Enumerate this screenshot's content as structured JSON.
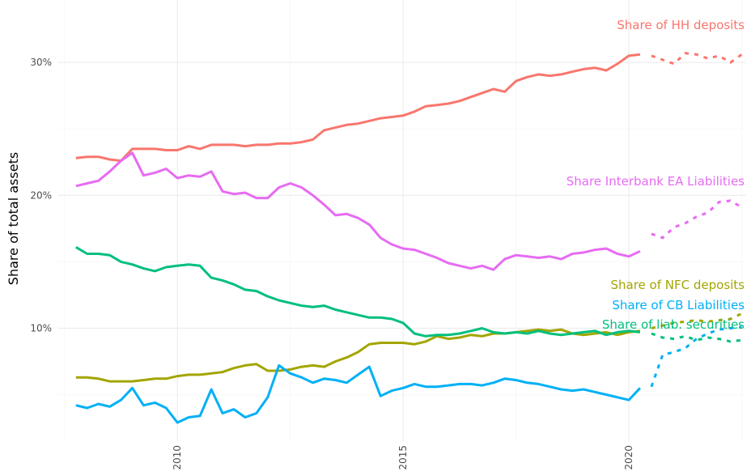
{
  "chart_data": {
    "type": "line",
    "y_label": "Share of total assets",
    "x": [
      2007.75,
      2008,
      2008.25,
      2008.5,
      2008.75,
      2009,
      2009.25,
      2009.5,
      2009.75,
      2010,
      2010.25,
      2010.5,
      2010.75,
      2011,
      2011.25,
      2011.5,
      2011.75,
      2012,
      2012.25,
      2012.5,
      2012.75,
      2013,
      2013.25,
      2013.5,
      2013.75,
      2014,
      2014.25,
      2014.5,
      2014.75,
      2015,
      2015.25,
      2015.5,
      2015.75,
      2016,
      2016.25,
      2016.5,
      2016.75,
      2017,
      2017.25,
      2017.5,
      2017.75,
      2018,
      2018.25,
      2018.5,
      2018.75,
      2019,
      2019.25,
      2019.5,
      2019.75,
      2020,
      2020.25,
      2020.5,
      2020.75,
      2021,
      2021.25,
      2021.5,
      2021.75,
      2022,
      2022.25,
      2022.5
    ],
    "xlim": [
      2007.36,
      2022.6
    ],
    "xticks": [
      2010,
      2015,
      2020
    ],
    "minor_xticks": [
      2007.5,
      2012.5,
      2017.5,
      2022.5
    ],
    "ylim": [
      1.5,
      34.7
    ],
    "yticks": [
      {
        "value": 10,
        "label": "10%"
      },
      {
        "value": 20,
        "label": "20%"
      },
      {
        "value": 30,
        "label": "30%"
      }
    ],
    "minor_yticks": [
      5,
      15,
      25
    ],
    "grid": true,
    "series": [
      {
        "name": "Share of HH deposits",
        "color": "#F8766D",
        "values": [
          22.8,
          22.9,
          22.9,
          22.7,
          22.6,
          23.5,
          23.5,
          23.5,
          23.4,
          23.4,
          23.7,
          23.5,
          23.8,
          23.8,
          23.8,
          23.7,
          23.8,
          23.8,
          23.9,
          23.9,
          24.0,
          24.2,
          24.9,
          25.1,
          25.3,
          25.4,
          25.6,
          25.8,
          25.9,
          26.0,
          26.3,
          26.7,
          26.8,
          26.9,
          27.1,
          27.4,
          27.7,
          28.0,
          27.8,
          28.6,
          28.9,
          29.1,
          29.0,
          29.1,
          29.3,
          29.5,
          29.6,
          29.4,
          29.9,
          30.5,
          30.6,
          null,
          null,
          null,
          null,
          null,
          null,
          null,
          null,
          null
        ],
        "projection": [
          null,
          null,
          null,
          null,
          null,
          null,
          null,
          null,
          null,
          null,
          null,
          null,
          null,
          null,
          null,
          null,
          null,
          null,
          null,
          null,
          null,
          null,
          null,
          null,
          null,
          null,
          null,
          null,
          null,
          null,
          null,
          null,
          null,
          null,
          null,
          null,
          null,
          null,
          null,
          null,
          null,
          null,
          null,
          null,
          null,
          null,
          null,
          null,
          null,
          null,
          null,
          30.5,
          30.2,
          29.9,
          30.7,
          30.6,
          30.3,
          30.5,
          30.0,
          30.6
        ]
      },
      {
        "name": "Share Interbank EA Liabilities",
        "color": "#E76BF3",
        "values": [
          20.7,
          20.9,
          21.1,
          21.8,
          22.6,
          23.2,
          21.5,
          21.7,
          22.0,
          21.3,
          21.5,
          21.4,
          21.8,
          20.3,
          20.1,
          20.2,
          19.8,
          19.8,
          20.6,
          20.9,
          20.6,
          20.0,
          19.3,
          18.5,
          18.6,
          18.3,
          17.8,
          16.8,
          16.3,
          16.0,
          15.9,
          15.6,
          15.3,
          14.9,
          14.7,
          14.5,
          14.7,
          14.4,
          15.2,
          15.5,
          15.4,
          15.3,
          15.4,
          15.2,
          15.6,
          15.7,
          15.9,
          16.0,
          15.6,
          15.4,
          15.8,
          null,
          null,
          null,
          null,
          null,
          null,
          null,
          null,
          null
        ],
        "projection": [
          null,
          null,
          null,
          null,
          null,
          null,
          null,
          null,
          null,
          null,
          null,
          null,
          null,
          null,
          null,
          null,
          null,
          null,
          null,
          null,
          null,
          null,
          null,
          null,
          null,
          null,
          null,
          null,
          null,
          null,
          null,
          null,
          null,
          null,
          null,
          null,
          null,
          null,
          null,
          null,
          null,
          null,
          null,
          null,
          null,
          null,
          null,
          null,
          null,
          null,
          null,
          17.1,
          16.8,
          17.6,
          17.9,
          18.4,
          18.7,
          19.5,
          19.6,
          19.1
        ]
      },
      {
        "name": "Share of NFC deposits",
        "color": "#A3A500",
        "values": [
          6.3,
          6.3,
          6.2,
          6.0,
          6.0,
          6.0,
          6.1,
          6.2,
          6.2,
          6.4,
          6.5,
          6.5,
          6.6,
          6.7,
          7.0,
          7.2,
          7.3,
          6.8,
          6.8,
          6.9,
          7.1,
          7.2,
          7.1,
          7.5,
          7.8,
          8.2,
          8.8,
          8.9,
          8.9,
          8.9,
          8.8,
          9.0,
          9.4,
          9.2,
          9.3,
          9.5,
          9.4,
          9.6,
          9.6,
          9.7,
          9.8,
          9.9,
          9.8,
          9.9,
          9.6,
          9.5,
          9.6,
          9.7,
          9.5,
          9.7,
          9.8,
          null,
          null,
          null,
          null,
          null,
          null,
          null,
          null,
          null
        ],
        "projection": [
          null,
          null,
          null,
          null,
          null,
          null,
          null,
          null,
          null,
          null,
          null,
          null,
          null,
          null,
          null,
          null,
          null,
          null,
          null,
          null,
          null,
          null,
          null,
          null,
          null,
          null,
          null,
          null,
          null,
          null,
          null,
          null,
          null,
          null,
          null,
          null,
          null,
          null,
          null,
          null,
          null,
          null,
          null,
          null,
          null,
          null,
          null,
          null,
          null,
          null,
          null,
          10.0,
          10.2,
          10.4,
          10.5,
          10.6,
          10.5,
          10.6,
          10.7,
          11.1
        ]
      },
      {
        "name": "Share of CB Liabilities",
        "color": "#00B0F6",
        "values": [
          4.2,
          4.0,
          4.3,
          4.1,
          4.6,
          5.5,
          4.2,
          4.4,
          4.0,
          2.9,
          3.3,
          3.4,
          5.4,
          3.6,
          3.9,
          3.3,
          3.6,
          4.8,
          7.2,
          6.6,
          6.3,
          5.9,
          6.2,
          6.1,
          5.9,
          6.5,
          7.1,
          4.9,
          5.3,
          5.5,
          5.8,
          5.6,
          5.6,
          5.7,
          5.8,
          5.8,
          5.7,
          5.9,
          6.2,
          6.1,
          5.9,
          5.8,
          5.6,
          5.4,
          5.3,
          5.4,
          5.2,
          5.0,
          4.8,
          4.6,
          5.5,
          null,
          null,
          null,
          null,
          null,
          null,
          null,
          null,
          null
        ],
        "projection": [
          null,
          null,
          null,
          null,
          null,
          null,
          null,
          null,
          null,
          null,
          null,
          null,
          null,
          null,
          null,
          null,
          null,
          null,
          null,
          null,
          null,
          null,
          null,
          null,
          null,
          null,
          null,
          null,
          null,
          null,
          null,
          null,
          null,
          null,
          null,
          null,
          null,
          null,
          null,
          null,
          null,
          null,
          null,
          null,
          null,
          null,
          null,
          null,
          null,
          null,
          null,
          5.6,
          8.0,
          8.2,
          8.5,
          9.2,
          9.6,
          9.9,
          10.0,
          10.1
        ]
      },
      {
        "name": "Share of liab. securities",
        "color": "#00BF7D",
        "values": [
          16.1,
          15.6,
          15.6,
          15.5,
          15.0,
          14.8,
          14.5,
          14.3,
          14.6,
          14.7,
          14.8,
          14.7,
          13.8,
          13.6,
          13.3,
          12.9,
          12.8,
          12.4,
          12.1,
          11.9,
          11.7,
          11.6,
          11.7,
          11.4,
          11.2,
          11.0,
          10.8,
          10.8,
          10.7,
          10.4,
          9.6,
          9.4,
          9.5,
          9.5,
          9.6,
          9.8,
          10.0,
          9.7,
          9.6,
          9.7,
          9.6,
          9.8,
          9.6,
          9.5,
          9.6,
          9.7,
          9.8,
          9.5,
          9.7,
          9.8,
          9.7,
          null,
          null,
          null,
          null,
          null,
          null,
          null,
          null,
          null
        ],
        "projection": [
          null,
          null,
          null,
          null,
          null,
          null,
          null,
          null,
          null,
          null,
          null,
          null,
          null,
          null,
          null,
          null,
          null,
          null,
          null,
          null,
          null,
          null,
          null,
          null,
          null,
          null,
          null,
          null,
          null,
          null,
          null,
          null,
          null,
          null,
          null,
          null,
          null,
          null,
          null,
          null,
          null,
          null,
          null,
          null,
          null,
          null,
          null,
          null,
          null,
          null,
          null,
          9.6,
          9.3,
          9.2,
          9.4,
          9.1,
          9.3,
          9.2,
          9.0,
          9.1
        ]
      }
    ]
  }
}
